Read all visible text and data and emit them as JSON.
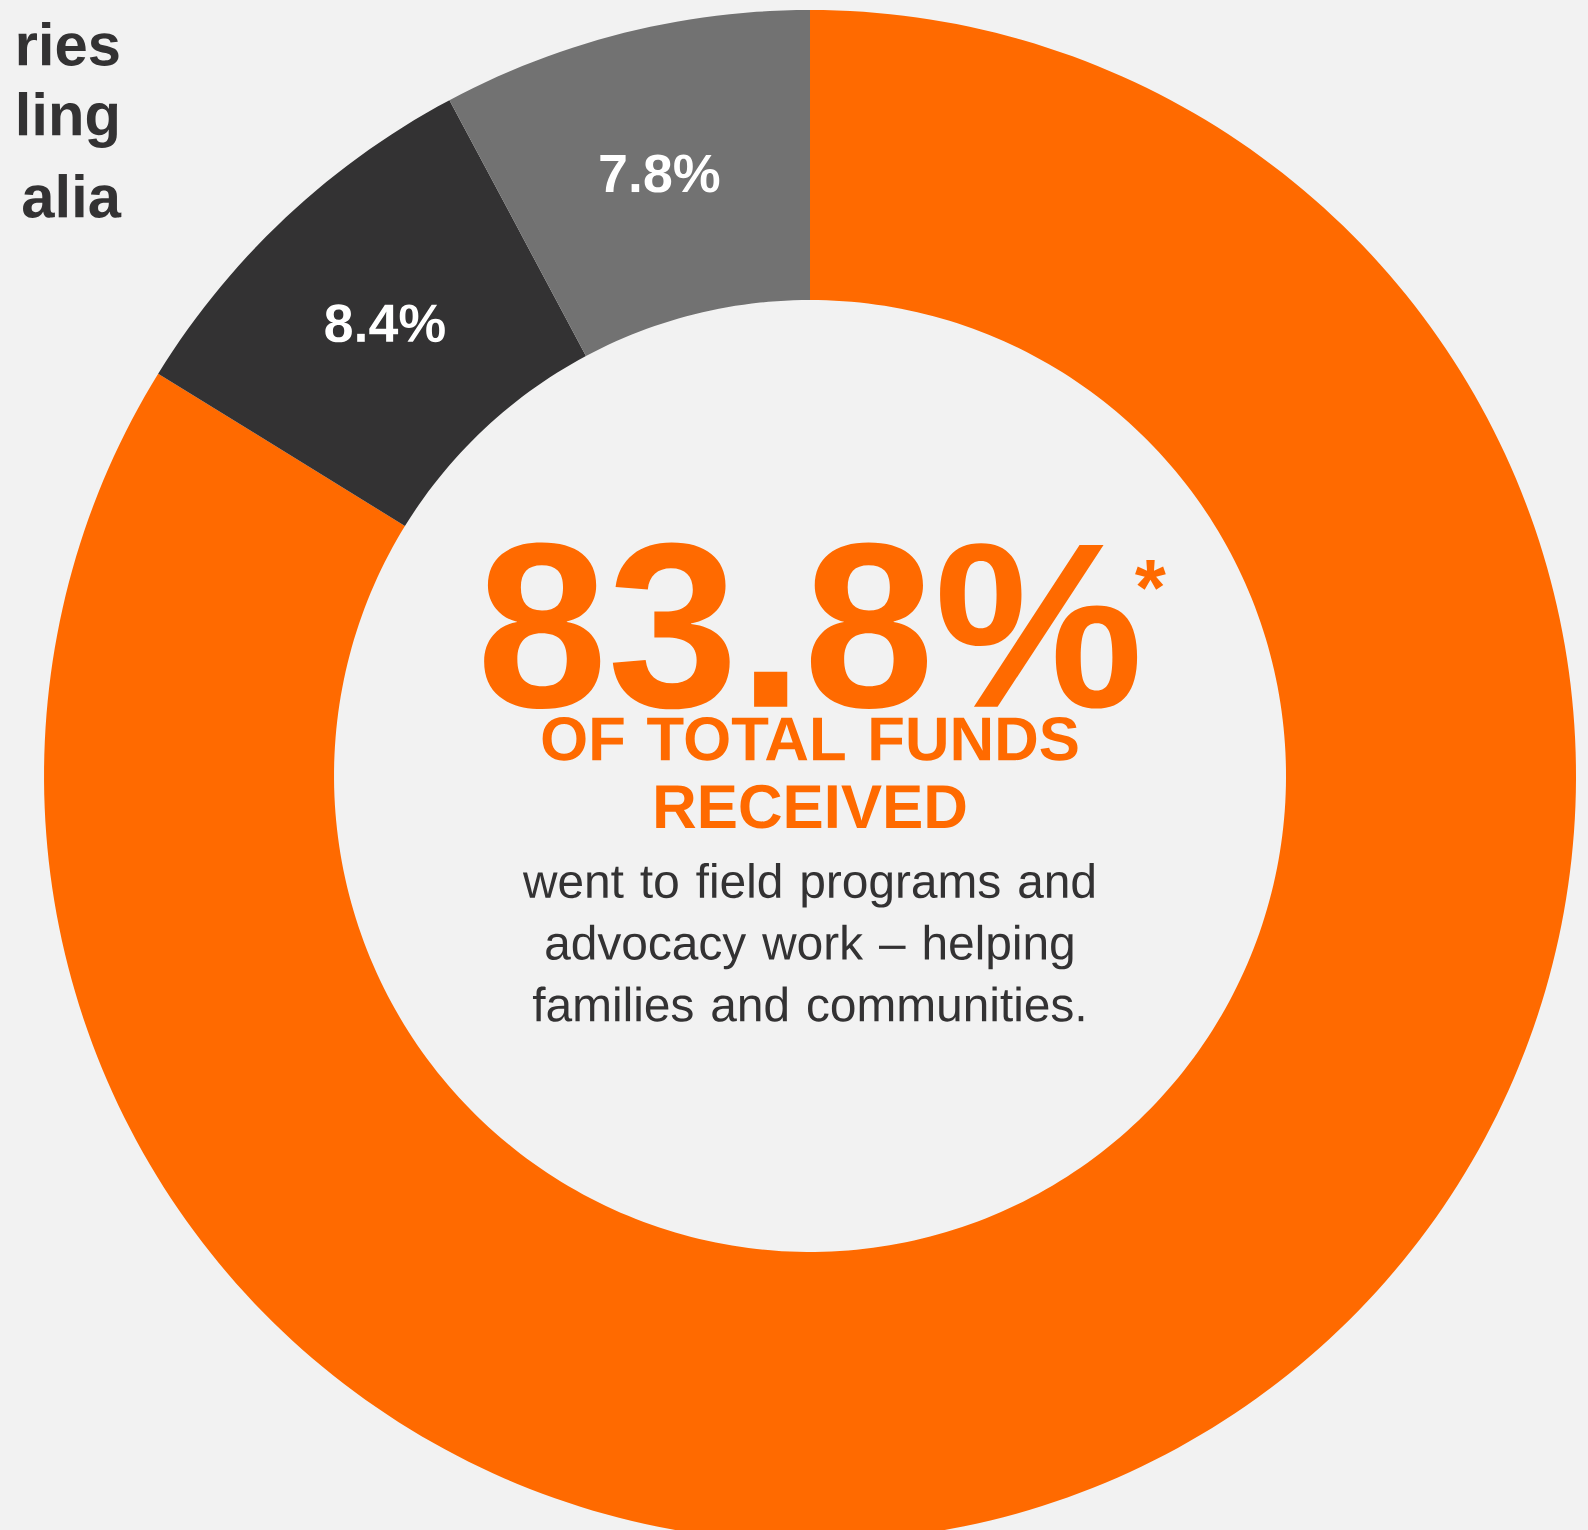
{
  "chart_data": {
    "type": "donut",
    "categories": [
      null,
      null,
      null
    ],
    "values": [
      83.8,
      8.4,
      7.8
    ],
    "colors": [
      "#ff6a00",
      "#333233",
      "#727272"
    ],
    "value_labels": [
      "83.8%",
      "8.4%",
      "7.8%"
    ],
    "annotations": [
      "ries",
      "ling",
      "alia",
      "*",
      "OF TOTAL FUNDS RECEIVED",
      "went to field programs and advocacy work – helping families and communities."
    ]
  }
}
